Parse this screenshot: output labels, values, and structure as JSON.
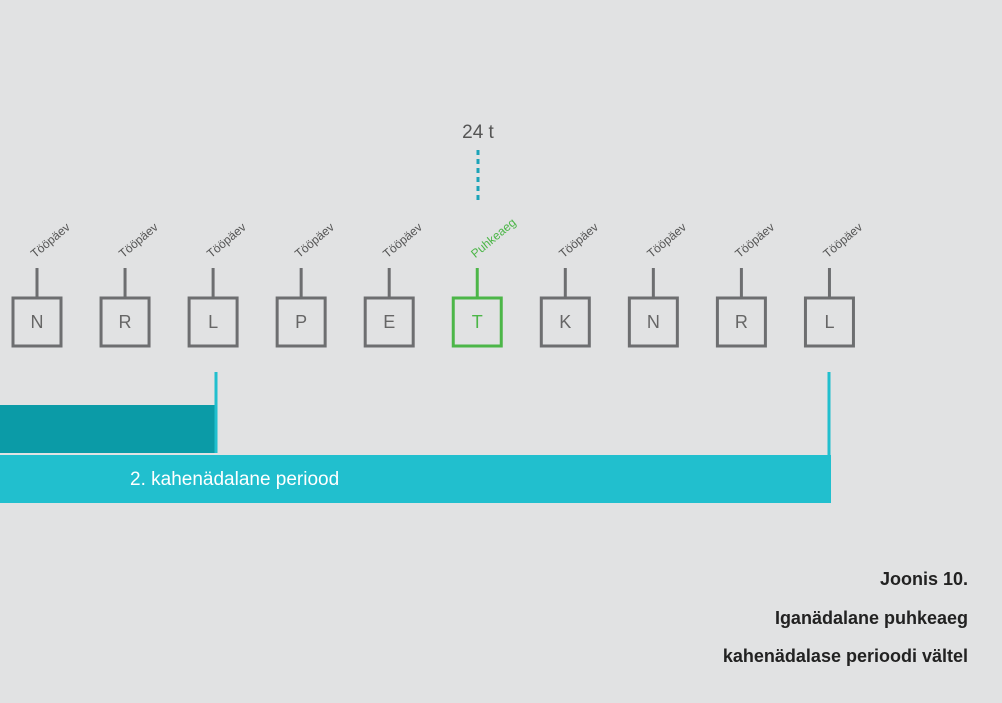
{
  "top_label": "24 t",
  "days": [
    {
      "letter": "N",
      "label": "Tööpäev"
    },
    {
      "letter": "R",
      "label": "Tööpäev"
    },
    {
      "letter": "L",
      "label": "Tööpäev"
    },
    {
      "letter": "P",
      "label": "Tööpäev"
    },
    {
      "letter": "E",
      "label": "Tööpäev"
    },
    {
      "letter": "T",
      "label": "Puhkeaeg"
    },
    {
      "letter": "K",
      "label": "Tööpäev"
    },
    {
      "letter": "N",
      "label": "Tööpäev"
    },
    {
      "letter": "R",
      "label": "Tööpäev"
    },
    {
      "letter": "L",
      "label": "Tööpäev"
    }
  ],
  "period_label": "2. kahenädalane periood",
  "caption": [
    "Joonis 10.",
    "Iganädalane puhkeaeg",
    "kahenädalase perioodi vältel"
  ]
}
